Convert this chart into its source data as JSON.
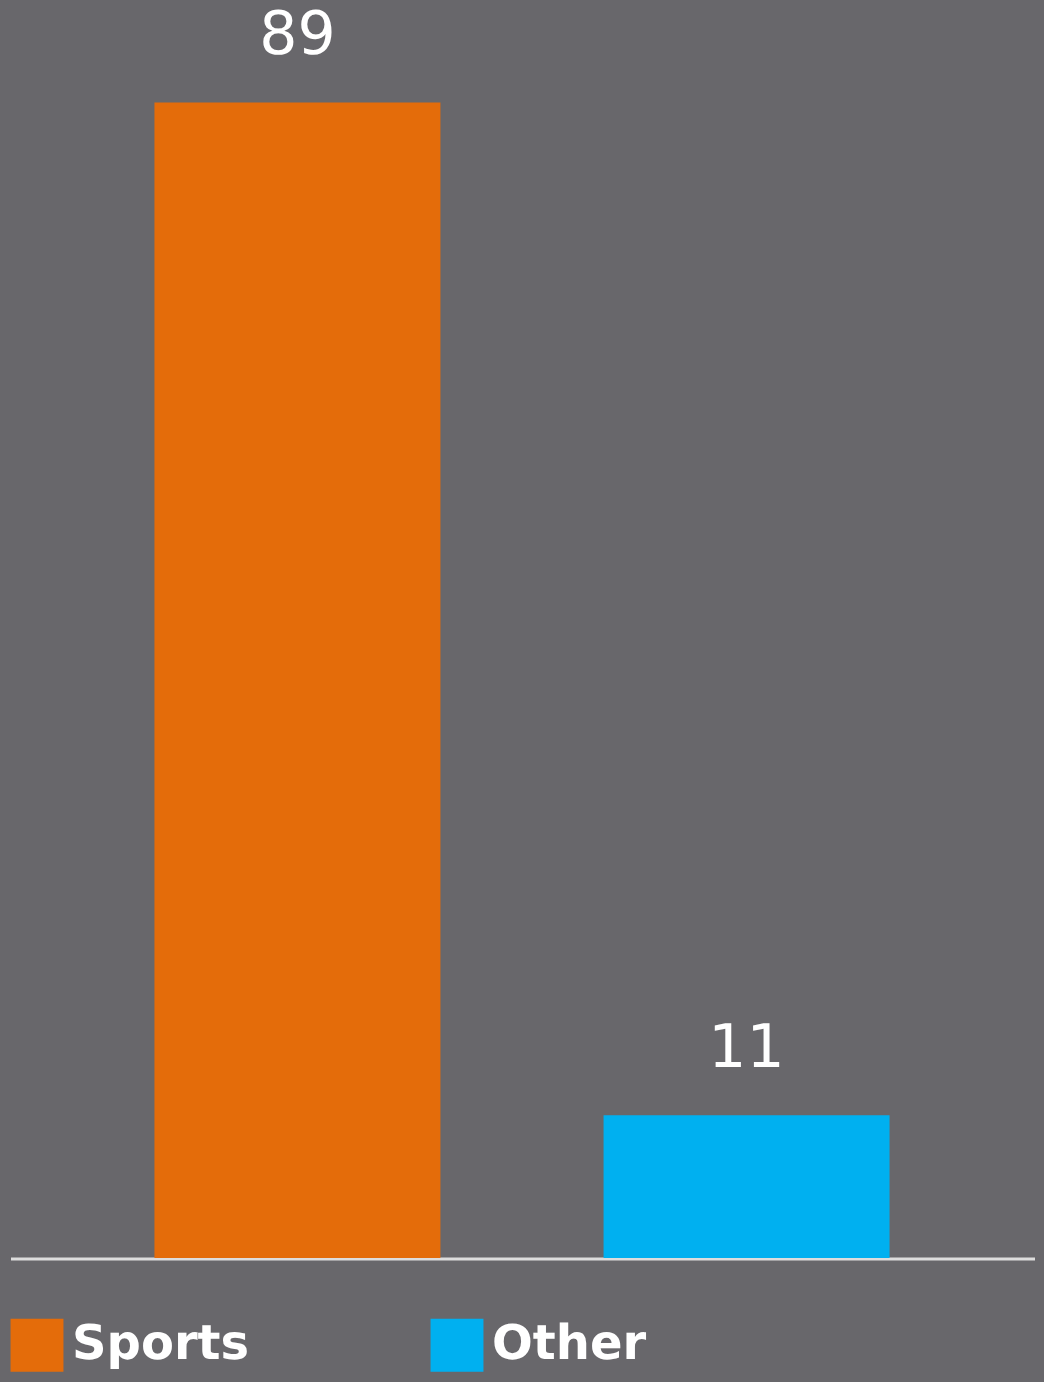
{
  "chart_data": {
    "type": "bar",
    "categories": [
      null,
      null
    ],
    "stacked": true,
    "series": [
      {
        "name": "Sports",
        "color": "#e46c0a",
        "values": [
          89,
          null
        ]
      },
      {
        "name": "Other",
        "color": "#00b0f0",
        "values": [
          null,
          11
        ]
      }
    ],
    "data_labels": true,
    "legend": "bottom",
    "grid": false,
    "tick_labels": false
  }
}
